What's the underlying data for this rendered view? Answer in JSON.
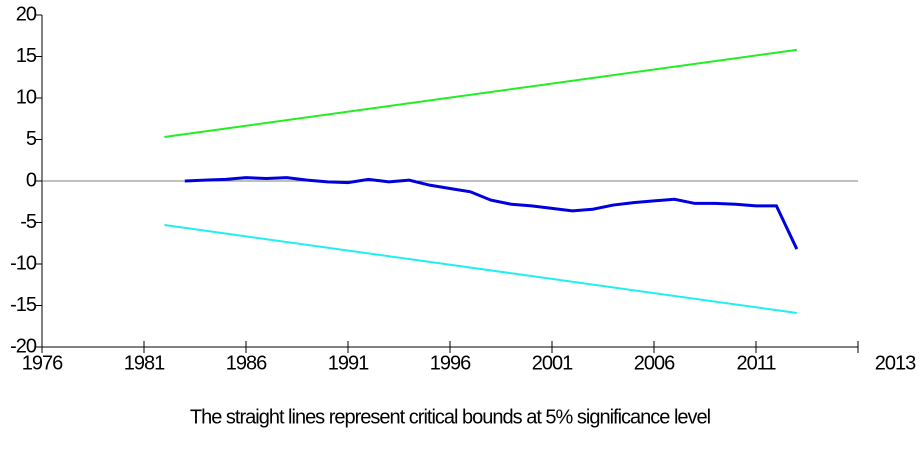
{
  "chart_data": {
    "type": "line",
    "caption": "The straight lines represent critical bounds at 5% significance level",
    "x_end_label": "2013",
    "xlim": [
      1976,
      2016
    ],
    "xticks": [
      1976,
      1981,
      1986,
      1991,
      1996,
      2001,
      2006,
      2011
    ],
    "ylim": [
      -20,
      20
    ],
    "yticks": [
      -20,
      -15,
      -10,
      -5,
      0,
      5,
      10,
      15,
      20
    ],
    "hline": 0,
    "series": [
      {
        "color": "#0000dd",
        "x": [
          1983,
          1984,
          1985,
          1986,
          1987,
          1988,
          1989,
          1990,
          1991,
          1992,
          1993,
          1994,
          1995,
          1996,
          1997,
          1998,
          1999,
          2000,
          2001,
          2002,
          2003,
          2004,
          2005,
          2006,
          2007,
          2008,
          2009,
          2010,
          2011,
          2012,
          2013
        ],
        "values": [
          0,
          0.1,
          0.2,
          0.4,
          0.3,
          0.4,
          0.1,
          -0.1,
          -0.2,
          0.2,
          -0.1,
          0.1,
          -0.5,
          -0.9,
          -1.3,
          -2.3,
          -2.8,
          -3.0,
          -3.3,
          -3.6,
          -3.4,
          -2.9,
          -2.6,
          -2.4,
          -2.2,
          -2.7,
          -2.7,
          -2.8,
          -3.0,
          -3.0,
          -8.2
        ]
      },
      {
        "color": "#22ee22",
        "x": [
          1982,
          2013
        ],
        "values": [
          5.3,
          15.8
        ]
      },
      {
        "color": "#22eeee",
        "x": [
          1982,
          2013
        ],
        "values": [
          -5.3,
          -15.9
        ]
      }
    ]
  }
}
